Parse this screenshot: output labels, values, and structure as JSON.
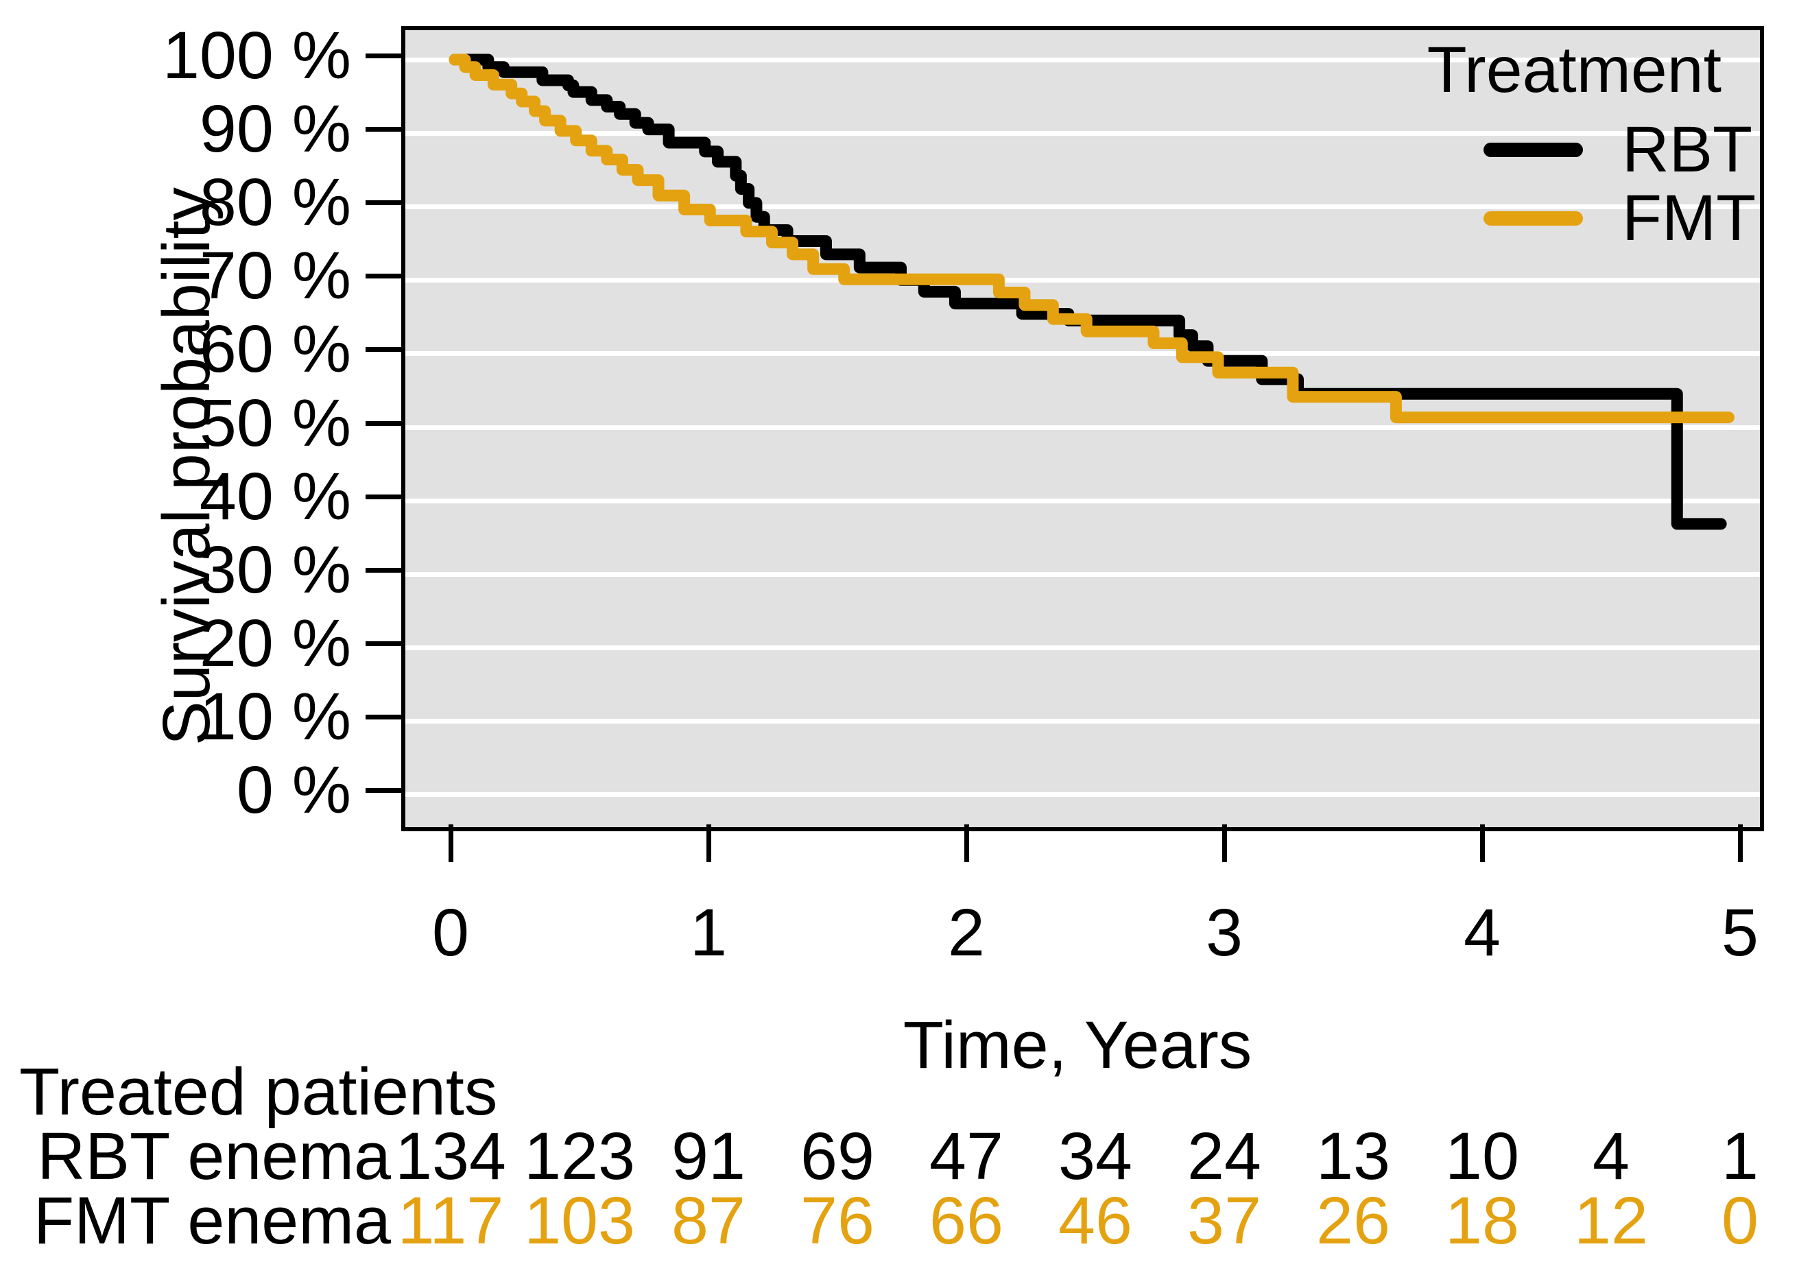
{
  "chart_data": {
    "type": "line",
    "subtype": "kaplan-meier-step",
    "title": "",
    "xlabel": "Time, Years",
    "ylabel": "Survival probability",
    "xlim": [
      0,
      5
    ],
    "ylim": [
      0,
      100
    ],
    "xticks": [
      0,
      1,
      2,
      3,
      4,
      5
    ],
    "yticks": [
      {
        "value": 100,
        "label": "100 %"
      },
      {
        "value": 90,
        "label": "90 %"
      },
      {
        "value": 80,
        "label": "80 %"
      },
      {
        "value": 70,
        "label": "70 %"
      },
      {
        "value": 60,
        "label": "60 %"
      },
      {
        "value": 50,
        "label": "50 %"
      },
      {
        "value": 40,
        "label": "40 %"
      },
      {
        "value": 30,
        "label": "30 %"
      },
      {
        "value": 20,
        "label": "20 %"
      },
      {
        "value": 10,
        "label": "10 %"
      },
      {
        "value": 0,
        "label": "0 %"
      }
    ],
    "grid": "horizontal-white-on-gray",
    "legend": {
      "position": "top-right-inside",
      "title": "Treatment",
      "entries": [
        {
          "label": "RBT",
          "color": "#000000"
        },
        {
          "label": "FMT",
          "color": "#E4A210"
        }
      ]
    },
    "series": [
      {
        "name": "RBT",
        "color": "#000000",
        "end_time": 4.91,
        "steps": [
          [
            0.0,
            100
          ],
          [
            0.13,
            99.0
          ],
          [
            0.19,
            98.3
          ],
          [
            0.34,
            97.2
          ],
          [
            0.44,
            96.5
          ],
          [
            0.46,
            95.6
          ],
          [
            0.53,
            94.5
          ],
          [
            0.59,
            93.6
          ],
          [
            0.64,
            92.6
          ],
          [
            0.7,
            91.4
          ],
          [
            0.75,
            90.5
          ],
          [
            0.83,
            88.7
          ],
          [
            0.97,
            87.5
          ],
          [
            1.02,
            86.1
          ],
          [
            1.09,
            84.2
          ],
          [
            1.11,
            82.4
          ],
          [
            1.14,
            80.5
          ],
          [
            1.17,
            78.6
          ],
          [
            1.2,
            76.8
          ],
          [
            1.29,
            75.3
          ],
          [
            1.44,
            73.5
          ],
          [
            1.57,
            71.7
          ],
          [
            1.73,
            70.0
          ],
          [
            1.82,
            68.4
          ],
          [
            1.94,
            66.8
          ],
          [
            2.2,
            65.4
          ],
          [
            2.38,
            64.5
          ],
          [
            2.81,
            62.5
          ],
          [
            2.86,
            61.0
          ],
          [
            2.92,
            59.0
          ],
          [
            3.13,
            56.5
          ],
          [
            3.27,
            54.5
          ],
          [
            4.74,
            36.8
          ]
        ]
      },
      {
        "name": "FMT",
        "color": "#E4A210",
        "end_time": 4.94,
        "steps": [
          [
            0.0,
            100
          ],
          [
            0.04,
            99.0
          ],
          [
            0.08,
            97.9
          ],
          [
            0.15,
            96.6
          ],
          [
            0.22,
            95.4
          ],
          [
            0.26,
            94.3
          ],
          [
            0.31,
            93.0
          ],
          [
            0.35,
            91.7
          ],
          [
            0.41,
            90.3
          ],
          [
            0.47,
            89.0
          ],
          [
            0.53,
            87.6
          ],
          [
            0.59,
            86.4
          ],
          [
            0.65,
            85.0
          ],
          [
            0.71,
            83.6
          ],
          [
            0.79,
            81.5
          ],
          [
            0.89,
            79.6
          ],
          [
            0.99,
            78.1
          ],
          [
            1.13,
            76.6
          ],
          [
            1.23,
            75.1
          ],
          [
            1.31,
            73.5
          ],
          [
            1.39,
            71.5
          ],
          [
            1.51,
            70.1
          ],
          [
            2.11,
            68.3
          ],
          [
            2.21,
            66.6
          ],
          [
            2.32,
            64.7
          ],
          [
            2.45,
            63.0
          ],
          [
            2.71,
            61.4
          ],
          [
            2.82,
            59.5
          ],
          [
            2.96,
            57.4
          ],
          [
            3.25,
            54.1
          ],
          [
            3.65,
            51.3
          ]
        ]
      }
    ]
  },
  "risk_table": {
    "title": "Treated patients",
    "time_points": [
      0,
      0.5,
      1,
      1.5,
      2,
      2.5,
      3,
      3.5,
      4,
      4.5,
      5
    ],
    "rows": [
      {
        "label": "RBT enema",
        "label_color": "#000000",
        "value_color": "#000000",
        "counts": [
          "134",
          "123",
          "91",
          "69",
          "47",
          "34",
          "24",
          "13",
          "10",
          "4",
          "1"
        ]
      },
      {
        "label": "FMT enema",
        "label_color": "#000000",
        "value_color": "#E4A210",
        "counts": [
          "117",
          "103",
          "87",
          "76",
          "66",
          "46",
          "37",
          "26",
          "18",
          "12",
          "0"
        ]
      }
    ]
  },
  "colors": {
    "panel_background": "#E1E1E1",
    "gridline": "#FFFFFF",
    "axis_and_text": "#000000",
    "rbt": "#000000",
    "fmt": "#E4A210"
  }
}
